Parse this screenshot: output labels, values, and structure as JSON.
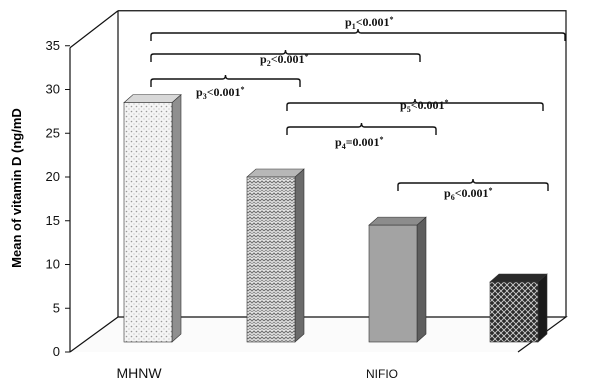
{
  "chart_data": {
    "type": "bar",
    "ylabel": "Mean of vitamin D (ng/mD",
    "ylim": [
      0,
      35
    ],
    "yticks": [
      0,
      5,
      10,
      15,
      20,
      25,
      30,
      35
    ],
    "categories": [
      "MHNW",
      "",
      "NIFIO",
      ""
    ],
    "values": [
      28.5,
      20,
      14.5,
      8
    ],
    "bar_colors": [
      "#f2f2f2",
      "#d9d9d9",
      "#a6a6a6",
      "#3f3f3f"
    ],
    "comparisons": [
      {
        "label": "p",
        "sub": "1",
        "text": "<0.001",
        "sup": "*",
        "from": 0,
        "to": 1
      },
      {
        "label": "p",
        "sub": "2",
        "text": "<0.001",
        "sup": "*",
        "from": 0,
        "to": 2
      },
      {
        "label": "p",
        "sub": "3",
        "text": "<0.001",
        "sup": "*",
        "from": 0,
        "to": 3
      },
      {
        "label": "p",
        "sub": "4",
        "text": "=0.001",
        "sup": "*",
        "from": 1,
        "to": 2
      },
      {
        "label": "p",
        "sub": "5",
        "text": "<0.001",
        "sup": "*",
        "from": 1,
        "to": 3
      },
      {
        "label": "p",
        "sub": "6",
        "text": "<0.001",
        "sup": "*",
        "from": 2,
        "to": 3
      }
    ]
  }
}
